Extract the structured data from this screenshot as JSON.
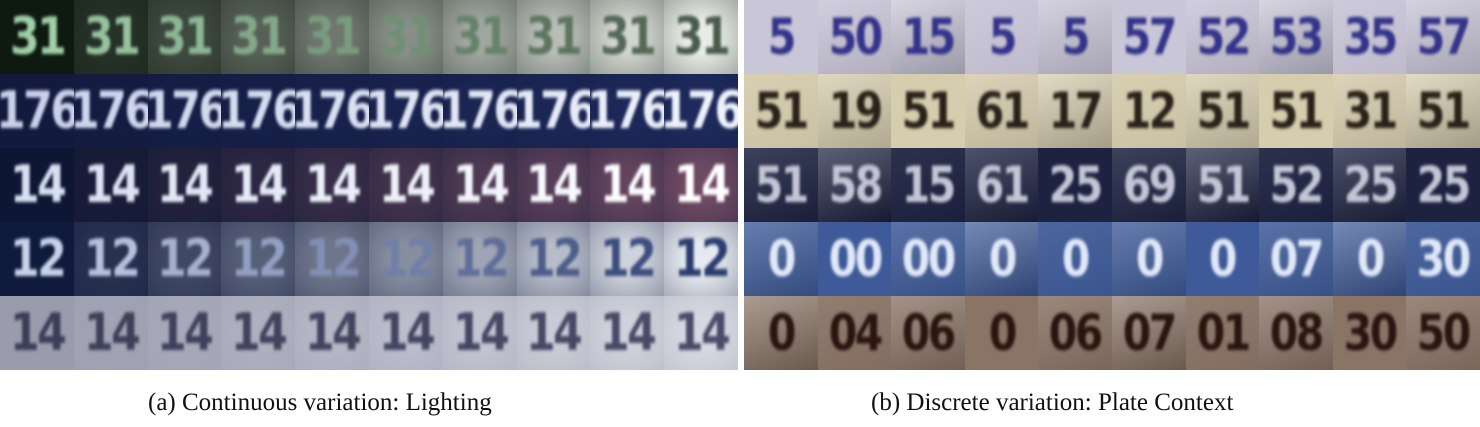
{
  "captions": {
    "a": "(a) Continuous variation: Lighting",
    "b": "(b) Discrete variation: Plate Context"
  },
  "panel_a": {
    "rows": [
      {
        "text": "31",
        "bg_dark": "#0e1a10",
        "bg_light": "#e8ece6",
        "fg_dark": "#9fd0a8",
        "fg_light": "#4a5b4c"
      },
      {
        "text": "176",
        "bg_dark": "#121a3e",
        "bg_light": "#1e2a5c",
        "fg_dark": "#c9d2ea",
        "fg_light": "#eef2fb"
      },
      {
        "text": "14",
        "bg_dark": "#0d1633",
        "bg_light": "#6e4a62",
        "fg_dark": "#d8e0f2",
        "fg_light": "#ffffff"
      },
      {
        "text": "12",
        "bg_dark": "#101a3c",
        "bg_light": "#e6eaf0",
        "fg_dark": "#c8d2ea",
        "fg_light": "#2a3c70"
      },
      {
        "text": "14",
        "bg_dark": "#9a9cae",
        "bg_light": "#d6d8e2",
        "fg_dark": "#3c3e58",
        "fg_light": "#4a4c68"
      }
    ]
  },
  "panel_b": {
    "rows": [
      {
        "bg": "#c9c6d8",
        "fg": "#33338a",
        "cells": [
          "5",
          "50",
          "15",
          "5",
          "5",
          "57",
          "52",
          "53",
          "35",
          "57"
        ]
      },
      {
        "bg": "#d6ccae",
        "fg": "#2a2218",
        "cells": [
          "51",
          "19",
          "51",
          "61",
          "17",
          "12",
          "51",
          "51",
          "31",
          "51"
        ]
      },
      {
        "bg": "#1c2240",
        "fg": "#c4c6d6",
        "cells": [
          "51",
          "58",
          "15",
          "61",
          "25",
          "69",
          "51",
          "52",
          "25",
          "25"
        ]
      },
      {
        "bg": "#3e5a98",
        "fg": "#e0e8f8",
        "cells": [
          "0",
          "00",
          "00",
          "0",
          "0",
          "0",
          "0",
          "07",
          "0",
          "30"
        ]
      },
      {
        "bg": "#8a7466",
        "fg": "#2a1410",
        "cells": [
          "0",
          "04",
          "06",
          "0",
          "06",
          "07",
          "01",
          "08",
          "30",
          "50"
        ]
      }
    ]
  }
}
